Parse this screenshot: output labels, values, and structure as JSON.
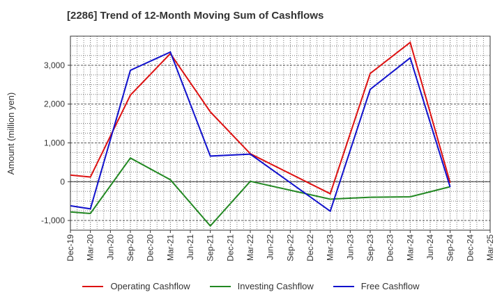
{
  "chart_data": {
    "type": "line",
    "title": "[2286]  Trend of 12-Month Moving Sum of Cashflows",
    "xlabel": "",
    "ylabel": "Amount (million yen)",
    "x_ticks": [
      "Dec-19",
      "Mar-20",
      "Jun-20",
      "Sep-20",
      "Dec-20",
      "Mar-21",
      "Jun-21",
      "Sep-21",
      "Dec-21",
      "Mar-22",
      "Jun-22",
      "Sep-22",
      "Dec-22",
      "Mar-23",
      "Jun-23",
      "Sep-23",
      "Dec-23",
      "Mar-24",
      "Jun-24",
      "Sep-24",
      "Dec-24",
      "Mar-25"
    ],
    "y_ticks": [
      -1000,
      0,
      1000,
      2000,
      3000
    ],
    "y_tick_labels": [
      "-1,000",
      "0",
      "1,000",
      "2,000",
      "3,000"
    ],
    "ylim": [
      -1250,
      3750
    ],
    "grid": true,
    "legend_position": "bottom",
    "series": [
      {
        "name": "Operating Cashflow",
        "color": "#dd1111",
        "x": [
          "Dec-19",
          "Mar-20",
          "Sep-20",
          "Mar-21",
          "Sep-21",
          "Mar-22",
          "Mar-23",
          "Sep-23",
          "Mar-24",
          "Sep-24"
        ],
        "values": [
          170,
          120,
          2230,
          3300,
          1800,
          720,
          -310,
          2790,
          3590,
          -30
        ]
      },
      {
        "name": "Investing Cashflow",
        "color": "#228822",
        "x": [
          "Dec-19",
          "Mar-20",
          "Sep-20",
          "Mar-21",
          "Sep-21",
          "Mar-22",
          "Mar-23",
          "Sep-23",
          "Mar-24",
          "Sep-24"
        ],
        "values": [
          -780,
          -820,
          610,
          50,
          -1140,
          10,
          -450,
          -400,
          -390,
          -130
        ]
      },
      {
        "name": "Free Cashflow",
        "color": "#1111cc",
        "x": [
          "Dec-19",
          "Mar-20",
          "Sep-20",
          "Mar-21",
          "Sep-21",
          "Mar-22",
          "Mar-23",
          "Sep-23",
          "Mar-24",
          "Sep-24"
        ],
        "values": [
          -620,
          -700,
          2870,
          3340,
          660,
          710,
          -760,
          2380,
          3190,
          -140
        ]
      }
    ]
  }
}
